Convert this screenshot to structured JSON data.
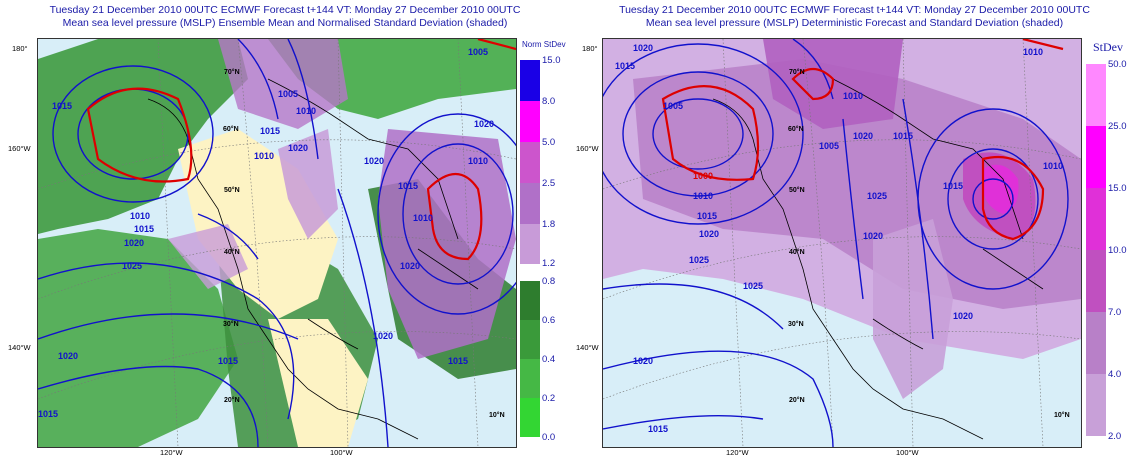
{
  "left": {
    "title_line1": "Tuesday 21 December 2010 00UTC ECMWF Forecast t+144  VT: Monday 27 December 2010 00UTC",
    "title_line2": "Mean sea level pressure (MSLP) Ensemble Mean and Normalised Standard Deviation (shaded)",
    "colorbar_title": "Norm StDev",
    "upper_ticks": [
      "15.0",
      "8.0",
      "5.0",
      "2.5",
      "1.8",
      "1.2"
    ],
    "lower_ticks": [
      "0.8",
      "0.6",
      "0.4",
      "0.2",
      "0.0"
    ],
    "upper_colors": [
      "#1a00e6",
      "#ff00ff",
      "#cc55cc",
      "#b070c8",
      "#c89bd8"
    ],
    "lower_colors": [
      "#2e7d2e",
      "#3a9a3a",
      "#45b845",
      "#33d633",
      "#00ff00"
    ],
    "isobar_labels": [
      "1015",
      "1005",
      "1010",
      "1015",
      "1020",
      "1010",
      "1015",
      "1020",
      "1025",
      "1010",
      "1015",
      "1020",
      "1010",
      "1005",
      "1020",
      "1015",
      "1015",
      "1020",
      "1015",
      "1010",
      "1020",
      "1020"
    ]
  },
  "right": {
    "title_line1": "Tuesday 21 December 2010 00UTC ECMWF Forecast t+144  VT: Monday 27 December 2010 00UTC",
    "title_line2": "Mean sea level pressure (MSLP) Deterministic Forecast and Standard Deviation (shaded)",
    "colorbar_title": "StDev",
    "ticks": [
      "50.0",
      "25.0",
      "15.0",
      "10.0",
      "7.0",
      "4.0",
      "2.0"
    ],
    "colors": [
      "#ff88ff",
      "#ff00ff",
      "#e030d8",
      "#c050c0",
      "#b880c8",
      "#c8a0d8",
      "#e0c8e8"
    ],
    "isobar_labels": [
      "1020",
      "1015",
      "1005",
      "1000",
      "1010",
      "1015",
      "1020",
      "1025",
      "1005",
      "1010",
      "1020",
      "1015",
      "1025",
      "1025",
      "1010",
      "1015",
      "1020",
      "1020",
      "1015",
      "1010",
      "1020"
    ]
  },
  "map_labels": {
    "lat_180": "180°",
    "lat_160w": "160°W",
    "lat_140w": "140°W",
    "lon_120w": "120°W",
    "lon_100w": "100°W",
    "lat_70n": "70°N",
    "lat_60n": "60°N",
    "lat_50n": "50°N",
    "lat_40n": "40°N",
    "lat_30n": "30°N",
    "lat_20n": "20°N",
    "lon_10n": "10°N"
  }
}
